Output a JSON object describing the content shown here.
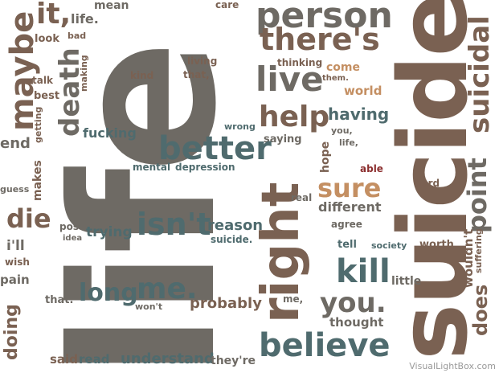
{
  "colors": {
    "gray": "#6e6a64",
    "brown": "#7a6152",
    "teal": "#4f6b6e",
    "tan": "#c48f62",
    "red": "#8c2f2f"
  },
  "words": {
    "life_big": "life",
    "suicide_big": "suicide",
    "person": "person",
    "theres": "there's",
    "live": "live",
    "help": "help",
    "right": "right",
    "better": "better",
    "death": "death",
    "maybe": "maybe",
    "it": "it,",
    "life_dot": "life.",
    "mean": "mean",
    "care": "care",
    "suicidal": "suicidal",
    "point": "point",
    "kill": "kill",
    "you_dot": "you.",
    "believe": "believe",
    "isnt": "isn't",
    "me_dot": "me.",
    "long": "long",
    "sure": "sure",
    "die": "die",
    "does": "does",
    "wouldnt": "wouldn't",
    "suffering": "suffering",
    "doing": "doing",
    "fucking": "fucking",
    "having": "having",
    "reason": "reason",
    "probably": "probably",
    "understand": "understand",
    "trying": "trying",
    "end": "end",
    "pain": "pain",
    "ill": "i'll",
    "wish": "wish",
    "guess": "guess",
    "makes": "makes",
    "getting": "getting",
    "look": "look",
    "bad": "bad",
    "talk": "talk",
    "best": "best",
    "making": "making",
    "kind": "kind",
    "living": "living",
    "that_comma": "that,",
    "thinking": "thinking",
    "come": "come",
    "them_dot": "them.",
    "world": "world",
    "you_comma": "you,",
    "life_comma": "life,",
    "hope": "hope",
    "saying": "saying",
    "wrong": "wrong",
    "mental": "mental",
    "depression": "depression",
    "able": "able",
    "hard": "hard",
    "real": "real",
    "different": "different",
    "agree": "agree",
    "tell": "tell",
    "society": "society",
    "worth": "worth",
    "little": "little",
    "post": "post",
    "idea": "idea",
    "suicide_dot": "suicide.",
    "that_dot": "that.",
    "wont": "won't",
    "me_comma": "me,",
    "thought": "thought",
    "said": "said",
    "read": "read",
    "theyre": "they're"
  },
  "watermark": "VisualLightBox.com"
}
